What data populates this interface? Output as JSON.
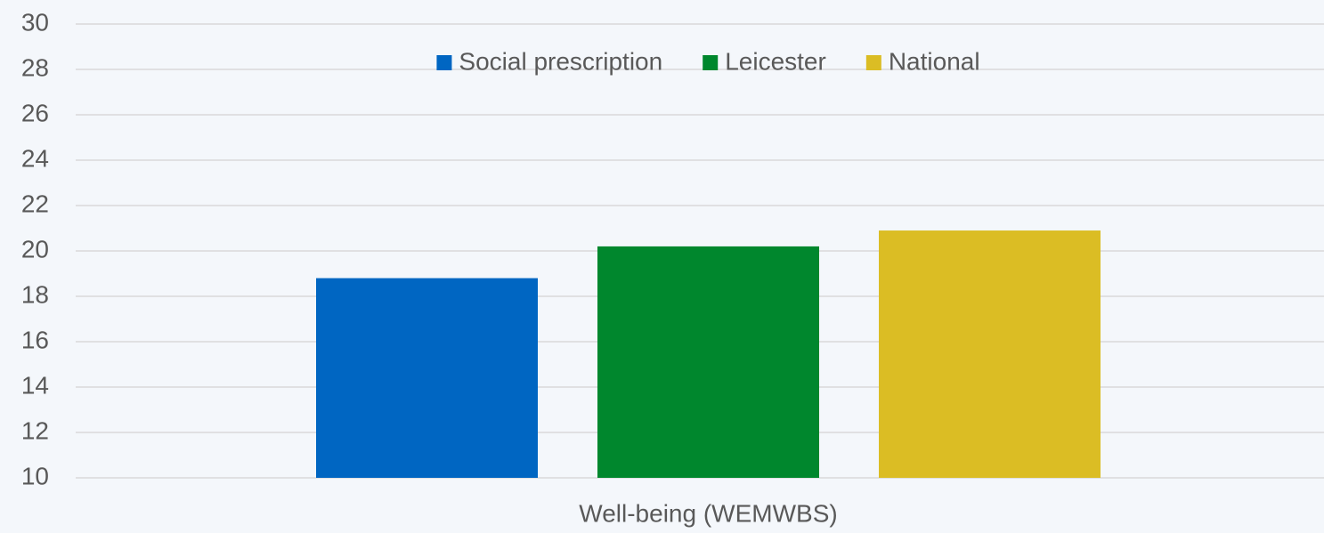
{
  "chart_data": {
    "type": "bar",
    "categories": [
      "Well-being (WEMWBS)"
    ],
    "series": [
      {
        "name": "Social prescription",
        "color": "#0066c2",
        "values": [
          18.8
        ]
      },
      {
        "name": "Leicester",
        "color": "#00872d",
        "values": [
          20.2
        ]
      },
      {
        "name": "National",
        "color": "#dbbd24",
        "values": [
          20.9
        ]
      }
    ],
    "ylim": [
      10,
      30
    ],
    "yticks": [
      10,
      12,
      14,
      16,
      18,
      20,
      22,
      24,
      26,
      28,
      30
    ],
    "grid": true,
    "legend": "top"
  }
}
